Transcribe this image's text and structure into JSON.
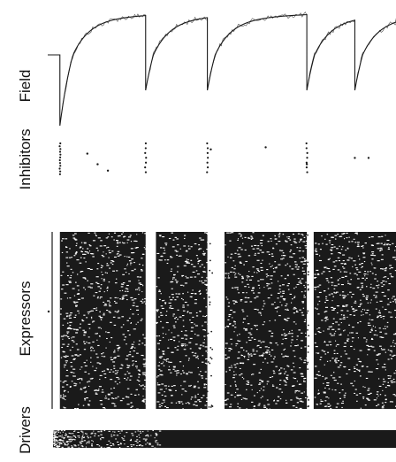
{
  "panels": {
    "field": "Field",
    "inhibitors": "Inhibitors",
    "expressors": "Expressors",
    "drivers": "Drivers"
  },
  "colors": {
    "ink": "#1a1a1a",
    "background": "#ffffff"
  },
  "chart_data": [
    {
      "type": "line",
      "title": "",
      "ylabel": "Field",
      "xlabel": "",
      "grid": false,
      "description_values": {
        "baseline": 0.0,
        "reset_times": [
          0.02,
          0.27,
          0.45,
          0.74,
          0.88
        ],
        "reset_minimum": -1.0,
        "recovered_level": 0.85
      }
    },
    {
      "type": "scatter",
      "ylabel": "Inhibitors",
      "grid": false,
      "burst_times": [
        0.02,
        0.27,
        0.45,
        0.74
      ],
      "sparse_points": [
        {
          "x": 0.1,
          "y": 0.55
        },
        {
          "x": 0.13,
          "y": 0.3
        },
        {
          "x": 0.16,
          "y": 0.15
        },
        {
          "x": 0.46,
          "y": 0.65
        },
        {
          "x": 0.62,
          "y": 0.7
        },
        {
          "x": 0.74,
          "y": 0.3
        },
        {
          "x": 0.88,
          "y": 0.45
        },
        {
          "x": 0.92,
          "y": 0.45
        }
      ]
    },
    {
      "type": "scatter",
      "ylabel": "Expressors",
      "grid": false,
      "active_intervals": [
        [
          0.02,
          0.27
        ],
        [
          0.3,
          0.45
        ],
        [
          0.5,
          0.74
        ],
        [
          0.76,
          1.0
        ]
      ],
      "silent_gaps": [
        [
          0.45,
          0.5
        ],
        [
          0.74,
          0.76
        ]
      ],
      "isolated_points": [
        {
          "x": -0.01,
          "y": 0.45
        }
      ]
    },
    {
      "type": "scatter",
      "ylabel": "Drivers",
      "grid": false,
      "active_intervals": [
        [
          0.0,
          1.0
        ]
      ]
    }
  ]
}
